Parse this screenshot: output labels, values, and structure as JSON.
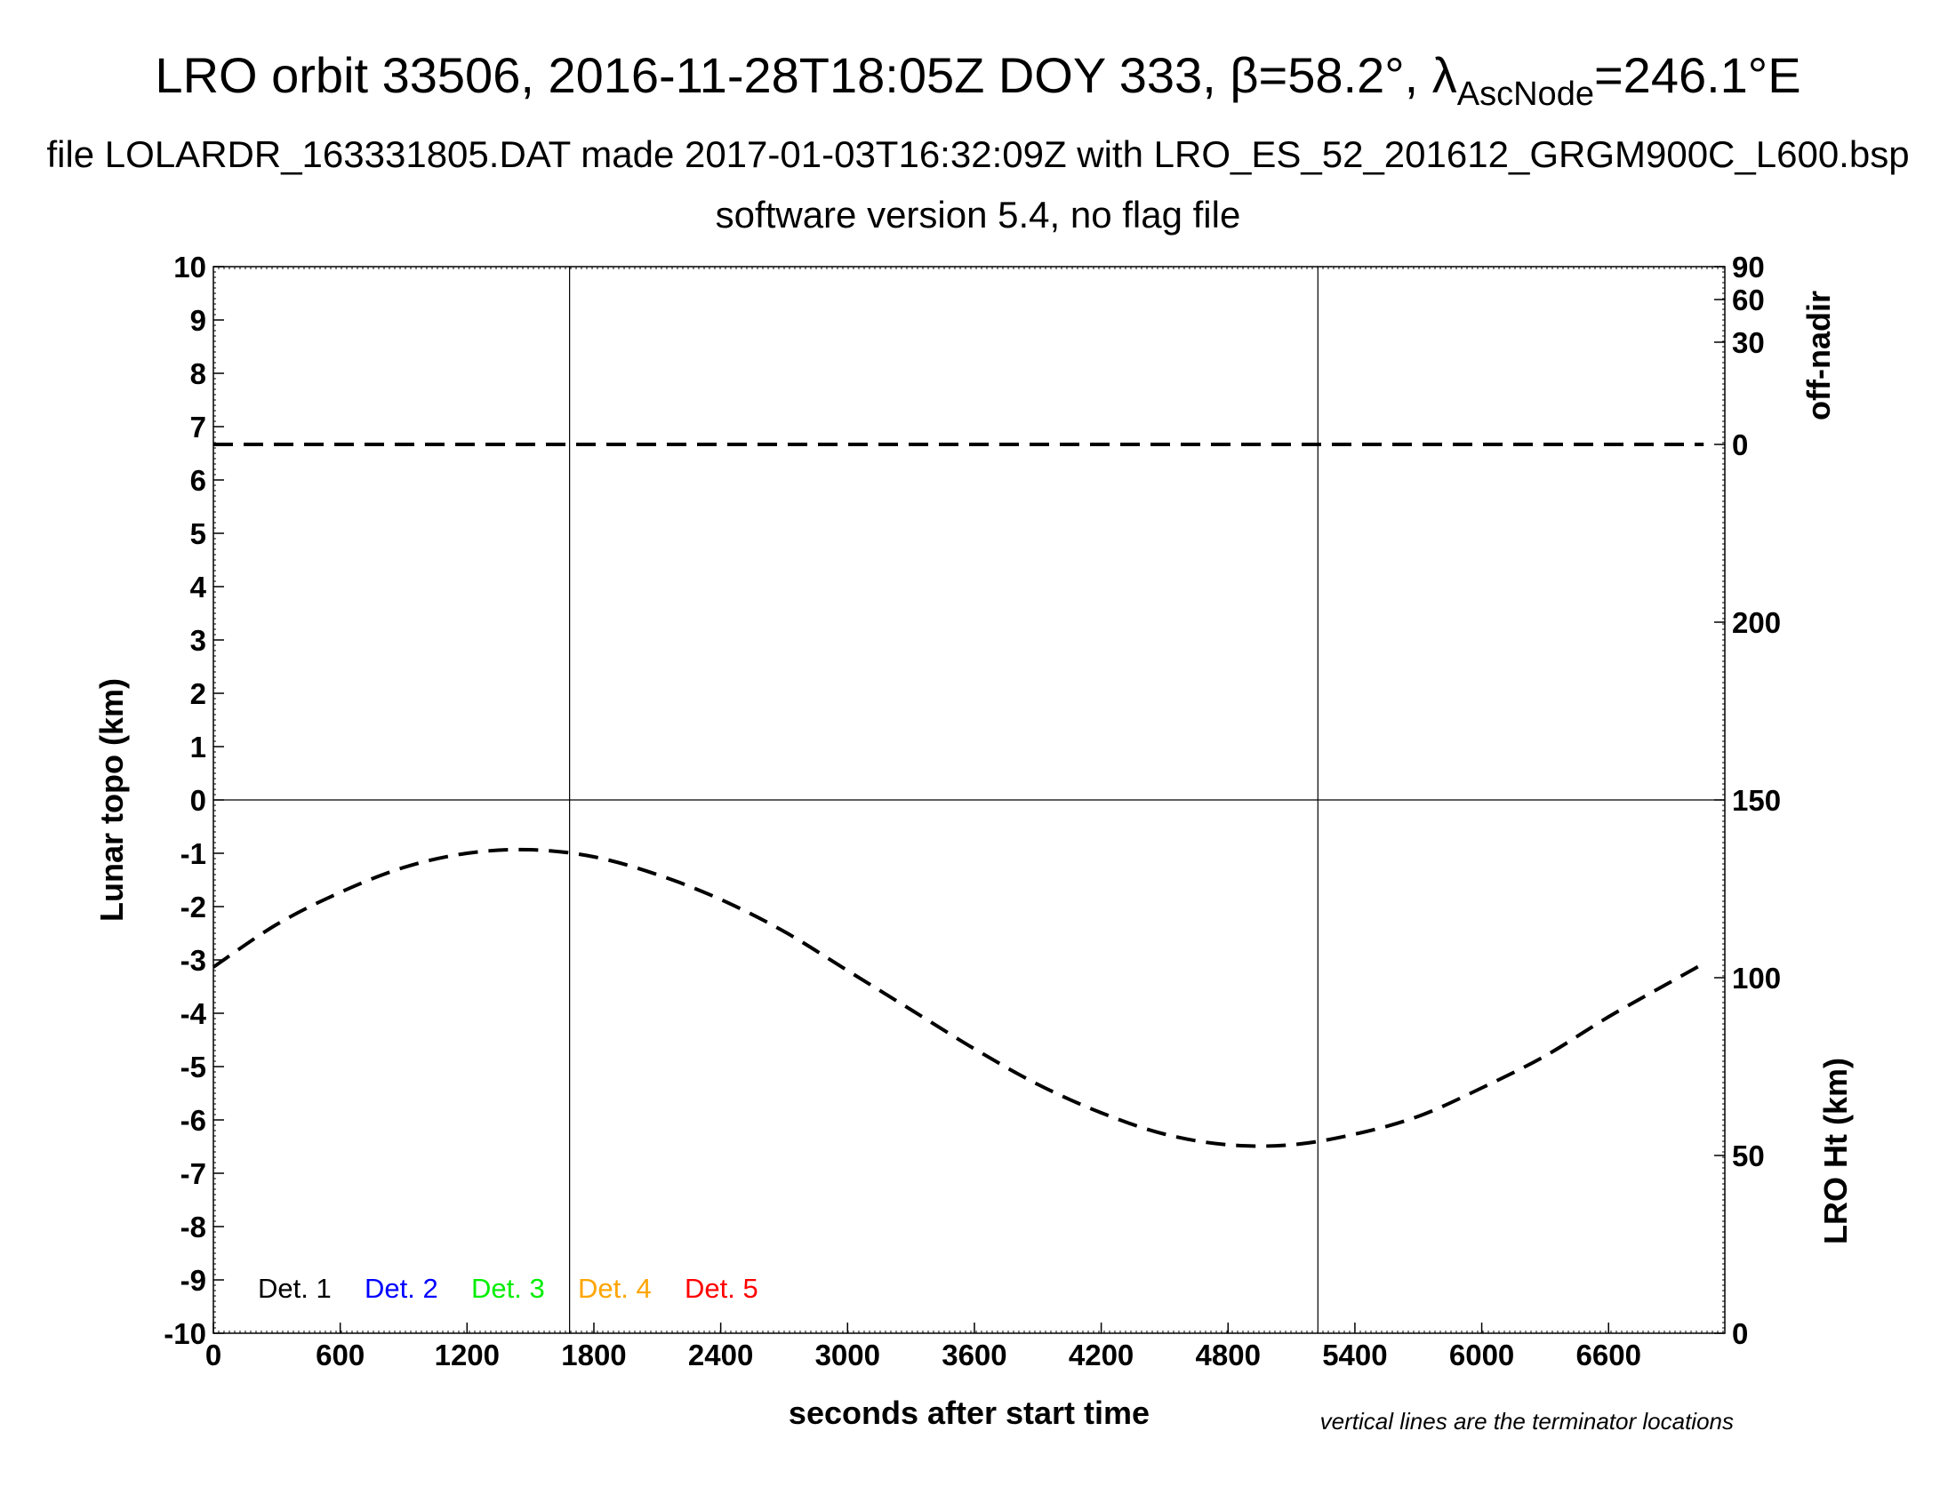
{
  "chart_data": {
    "type": "line",
    "title": {
      "main": "LRO orbit 33506, 2016-11-28T18:05Z DOY 333, ",
      "beta_symbol": "β",
      "beta_text": "=58.2°, ",
      "lambda_symbol": "λ",
      "lambda_subscript": "AscNode",
      "lambda_text": "=246.1°E"
    },
    "subtitle": "file LOLARDR_163331805.DAT made 2017-01-03T16:32:09Z with LRO_ES_52_201612_GRGM900C_L600.bsp",
    "subtitle2": "software version 5.4, no flag file",
    "xlabel": "seconds after start time",
    "ylabel": "Lunar topo (km)",
    "y2label_top": "off-nadir",
    "y2label_bottom": "LRO Ht (km)",
    "note": "vertical lines are the terminator locations",
    "xlim": [
      0,
      7150
    ],
    "ylim": [
      -10,
      10
    ],
    "xticks": [
      0,
      600,
      1200,
      1800,
      2400,
      3000,
      3600,
      4200,
      4800,
      5400,
      6000,
      6600
    ],
    "yticks": [
      10,
      9,
      8,
      7,
      6,
      5,
      4,
      3,
      2,
      1,
      0,
      -1,
      -2,
      -3,
      -4,
      -5,
      -6,
      -7,
      -8,
      -9,
      -10
    ],
    "offnadir_ticks": [
      90,
      60,
      30,
      0
    ],
    "ht_ticks": [
      200,
      150,
      100,
      50,
      0
    ],
    "ht_range": [
      0,
      300
    ],
    "terminators": [
      1685,
      5225
    ],
    "grid": false,
    "series": [
      {
        "name": "off-nadir",
        "style": "dashed",
        "color": "#000000",
        "x": [
          0,
          7050
        ],
        "y": [
          0,
          0
        ]
      },
      {
        "name": "LRO Ht (km)",
        "style": "dashed",
        "color": "#000000",
        "x": [
          0,
          300,
          600,
          900,
          1200,
          1500,
          1800,
          2100,
          2400,
          2700,
          3000,
          3300,
          3600,
          3900,
          4200,
          4500,
          4800,
          5100,
          5400,
          5700,
          6000,
          6300,
          6600,
          6900,
          7050
        ],
        "y": [
          103,
          115,
          124,
          131,
          135,
          136,
          134,
          129,
          122,
          113,
          102,
          91,
          80,
          70,
          62,
          56,
          53,
          53,
          56,
          61,
          69,
          78,
          89,
          99,
          104
        ]
      }
    ],
    "legend": {
      "position": "bottom-left",
      "items": [
        {
          "label": "Det. 1",
          "color": "#000000"
        },
        {
          "label": "Det. 2",
          "color": "#0000ff"
        },
        {
          "label": "Det. 3",
          "color": "#00ee00"
        },
        {
          "label": "Det. 4",
          "color": "#ffa500"
        },
        {
          "label": "Det. 5",
          "color": "#ff0000"
        }
      ]
    }
  }
}
